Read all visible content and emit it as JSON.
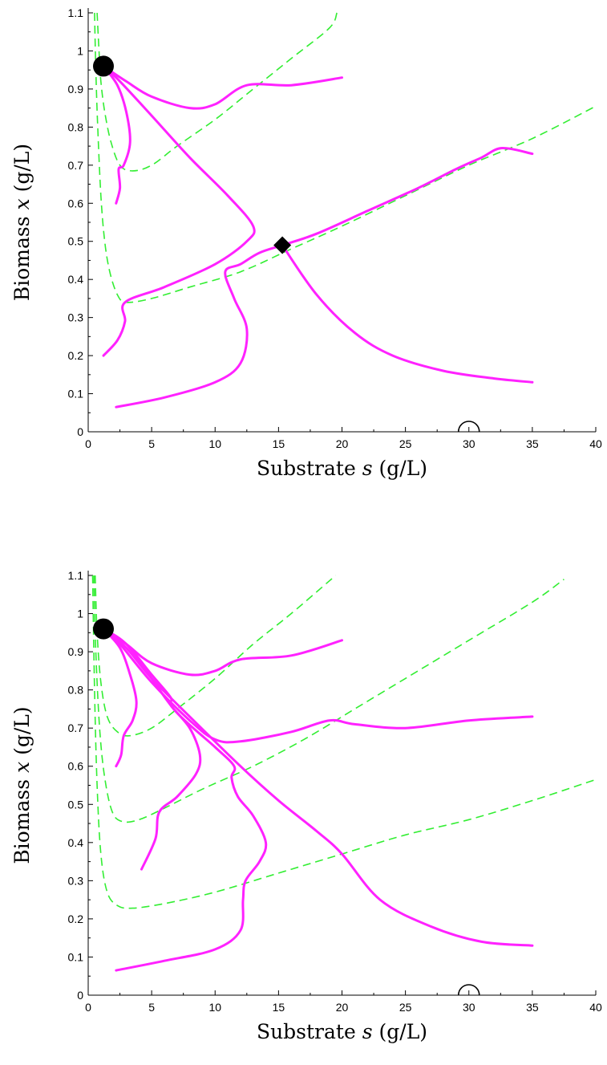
{
  "colors": {
    "trajectory": "#ff22ff",
    "nullcline": "#33ee33",
    "axis": "#000000",
    "marker": "#000000"
  },
  "chart_data": [
    {
      "type": "line",
      "xlabel": "Substrate",
      "xlabel_symbol": "s",
      "xlabel_unit": "(g/L)",
      "ylabel": "Biomass",
      "ylabel_symbol": "x",
      "ylabel_unit": "(g/L)",
      "xlim": [
        0,
        40
      ],
      "ylim": [
        0,
        1.1
      ],
      "xticks": [
        "0",
        "5",
        "10",
        "15",
        "20",
        "25",
        "30",
        "35",
        "40"
      ],
      "yticks": [
        "0",
        "0.1",
        "0.2",
        "0.3",
        "0.4",
        "0.5",
        "0.6",
        "0.7",
        "0.8",
        "0.9",
        "1",
        "1.1"
      ],
      "grid": false,
      "markers": [
        {
          "shape": "filled-circle",
          "x": 1.2,
          "y": 0.96
        },
        {
          "shape": "filled-diamond",
          "x": 15.3,
          "y": 0.49
        },
        {
          "shape": "open-half-circle",
          "x": 30,
          "y": 0
        }
      ],
      "series": [
        {
          "role": "nullcline",
          "points": [
            [
              0.5,
              1.1
            ],
            [
              0.6,
              0.95
            ],
            [
              0.75,
              0.8
            ],
            [
              1.0,
              0.62
            ],
            [
              1.3,
              0.5
            ],
            [
              1.7,
              0.42
            ],
            [
              2.3,
              0.36
            ],
            [
              3.0,
              0.34
            ],
            [
              5,
              0.35
            ],
            [
              8,
              0.38
            ],
            [
              12,
              0.42
            ],
            [
              16,
              0.48
            ],
            [
              20,
              0.54
            ],
            [
              25,
              0.62
            ],
            [
              30,
              0.7
            ],
            [
              35,
              0.77
            ],
            [
              40,
              0.855
            ]
          ]
        },
        {
          "role": "nullcline",
          "points": [
            [
              0.7,
              1.1
            ],
            [
              0.85,
              1.0
            ],
            [
              1.0,
              0.92
            ],
            [
              1.3,
              0.84
            ],
            [
              1.8,
              0.76
            ],
            [
              2.5,
              0.7
            ],
            [
              3.5,
              0.685
            ],
            [
              5,
              0.7
            ],
            [
              7,
              0.75
            ],
            [
              10,
              0.82
            ],
            [
              13,
              0.9
            ],
            [
              16,
              0.98
            ],
            [
              19,
              1.06
            ],
            [
              19.6,
              1.1
            ]
          ]
        },
        {
          "role": "trajectory",
          "points": [
            [
              20,
              0.93
            ],
            [
              16,
              0.91
            ],
            [
              12.5,
              0.91
            ],
            [
              10,
              0.86
            ],
            [
              8,
              0.85
            ],
            [
              5,
              0.88
            ],
            [
              3,
              0.92
            ],
            [
              1.2,
              0.96
            ]
          ]
        },
        {
          "role": "trajectory",
          "points": [
            [
              2.2,
              0.6
            ],
            [
              2.5,
              0.64
            ],
            [
              2.4,
              0.69
            ],
            [
              2.8,
              0.7
            ],
            [
              3.3,
              0.76
            ],
            [
              3.0,
              0.84
            ],
            [
              2.3,
              0.91
            ],
            [
              1.2,
              0.96
            ]
          ]
        },
        {
          "role": "trajectory",
          "points": [
            [
              1.2,
              0.2
            ],
            [
              2.3,
              0.24
            ],
            [
              2.9,
              0.29
            ],
            [
              2.9,
              0.34
            ],
            [
              6,
              0.38
            ],
            [
              10,
              0.44
            ],
            [
              12.5,
              0.5
            ],
            [
              13,
              0.54
            ],
            [
              11,
              0.62
            ],
            [
              8,
              0.72
            ],
            [
              5,
              0.83
            ],
            [
              2.5,
              0.92
            ],
            [
              1.2,
              0.96
            ]
          ]
        },
        {
          "role": "trajectory",
          "points": [
            [
              2.2,
              0.065
            ],
            [
              6,
              0.09
            ],
            [
              10,
              0.13
            ],
            [
              12,
              0.18
            ],
            [
              12.5,
              0.27
            ],
            [
              11.5,
              0.35
            ],
            [
              10.8,
              0.42
            ],
            [
              12,
              0.44
            ],
            [
              13.5,
              0.47
            ],
            [
              15.3,
              0.49
            ],
            [
              18,
              0.52
            ],
            [
              22,
              0.58
            ],
            [
              26,
              0.64
            ],
            [
              29,
              0.69
            ],
            [
              31,
              0.72
            ],
            [
              32.6,
              0.745
            ],
            [
              35,
              0.73
            ]
          ]
        },
        {
          "role": "trajectory",
          "points": [
            [
              35,
              0.13
            ],
            [
              32,
              0.14
            ],
            [
              28,
              0.16
            ],
            [
              24,
              0.2
            ],
            [
              21,
              0.26
            ],
            [
              18,
              0.36
            ],
            [
              15.3,
              0.49
            ]
          ]
        }
      ]
    },
    {
      "type": "line",
      "xlabel": "Substrate",
      "xlabel_symbol": "s",
      "xlabel_unit": "(g/L)",
      "ylabel": "Biomass",
      "ylabel_symbol": "x",
      "ylabel_unit": "(g/L)",
      "xlim": [
        0,
        40
      ],
      "ylim": [
        0,
        1.1
      ],
      "xticks": [
        "0",
        "5",
        "10",
        "15",
        "20",
        "25",
        "30",
        "35",
        "40"
      ],
      "yticks": [
        "0",
        "0.1",
        "0.2",
        "0.3",
        "0.4",
        "0.5",
        "0.6",
        "0.7",
        "0.8",
        "0.9",
        "1",
        "1.1"
      ],
      "grid": false,
      "markers": [
        {
          "shape": "filled-circle",
          "x": 1.2,
          "y": 0.96
        },
        {
          "shape": "open-half-circle",
          "x": 30,
          "y": 0
        }
      ],
      "series": [
        {
          "role": "nullcline",
          "points": [
            [
              0.35,
              1.1
            ],
            [
              0.5,
              0.8
            ],
            [
              0.7,
              0.55
            ],
            [
              1.0,
              0.37
            ],
            [
              1.5,
              0.27
            ],
            [
              2.3,
              0.235
            ],
            [
              3.5,
              0.228
            ],
            [
              6,
              0.24
            ],
            [
              10,
              0.27
            ],
            [
              15,
              0.32
            ],
            [
              20,
              0.37
            ],
            [
              25,
              0.42
            ],
            [
              30,
              0.46
            ],
            [
              35,
              0.51
            ],
            [
              40,
              0.565
            ]
          ]
        },
        {
          "role": "nullcline",
          "points": [
            [
              0.45,
              1.1
            ],
            [
              0.6,
              0.9
            ],
            [
              0.9,
              0.7
            ],
            [
              1.3,
              0.57
            ],
            [
              1.9,
              0.48
            ],
            [
              2.7,
              0.455
            ],
            [
              4,
              0.46
            ],
            [
              6,
              0.49
            ],
            [
              9,
              0.54
            ],
            [
              13,
              0.6
            ],
            [
              17,
              0.67
            ],
            [
              21,
              0.75
            ],
            [
              25,
              0.83
            ],
            [
              30,
              0.93
            ],
            [
              35,
              1.03
            ],
            [
              37.5,
              1.09
            ]
          ]
        },
        {
          "role": "nullcline",
          "points": [
            [
              0.55,
              1.1
            ],
            [
              0.7,
              0.95
            ],
            [
              1.0,
              0.82
            ],
            [
              1.5,
              0.73
            ],
            [
              2.3,
              0.69
            ],
            [
              3.3,
              0.68
            ],
            [
              5,
              0.7
            ],
            [
              7,
              0.75
            ],
            [
              10,
              0.83
            ],
            [
              13,
              0.92
            ],
            [
              16,
              1.0
            ],
            [
              19.5,
              1.1
            ]
          ]
        },
        {
          "role": "trajectory",
          "points": [
            [
              20,
              0.93
            ],
            [
              16,
              0.89
            ],
            [
              12,
              0.88
            ],
            [
              10,
              0.85
            ],
            [
              8,
              0.84
            ],
            [
              5,
              0.87
            ],
            [
              3,
              0.92
            ],
            [
              1.2,
              0.96
            ]
          ]
        },
        {
          "role": "trajectory",
          "points": [
            [
              2.2,
              0.6
            ],
            [
              2.6,
              0.63
            ],
            [
              2.8,
              0.68
            ],
            [
              3.5,
              0.72
            ],
            [
              3.8,
              0.77
            ],
            [
              3.3,
              0.84
            ],
            [
              2.5,
              0.91
            ],
            [
              1.2,
              0.96
            ]
          ]
        },
        {
          "role": "trajectory",
          "points": [
            [
              35,
              0.73
            ],
            [
              30,
              0.72
            ],
            [
              25,
              0.7
            ],
            [
              21,
              0.71
            ],
            [
              19,
              0.72
            ],
            [
              16,
              0.69
            ],
            [
              12,
              0.665
            ],
            [
              10,
              0.67
            ],
            [
              8,
              0.72
            ],
            [
              5,
              0.82
            ],
            [
              2.5,
              0.92
            ],
            [
              1.2,
              0.96
            ]
          ]
        },
        {
          "role": "trajectory",
          "points": [
            [
              4.2,
              0.33
            ],
            [
              5.3,
              0.41
            ],
            [
              5.6,
              0.48
            ],
            [
              7,
              0.52
            ],
            [
              8.5,
              0.58
            ],
            [
              8.8,
              0.63
            ],
            [
              8,
              0.7
            ],
            [
              6.5,
              0.76
            ],
            [
              6.5,
              0.78
            ],
            [
              5,
              0.84
            ],
            [
              3,
              0.92
            ],
            [
              1.2,
              0.96
            ]
          ]
        },
        {
          "role": "trajectory",
          "points": [
            [
              2.2,
              0.065
            ],
            [
              6,
              0.09
            ],
            [
              10,
              0.12
            ],
            [
              12,
              0.17
            ],
            [
              12.2,
              0.25
            ],
            [
              12.4,
              0.3
            ],
            [
              13.5,
              0.35
            ],
            [
              14,
              0.4
            ],
            [
              13,
              0.47
            ],
            [
              11.8,
              0.52
            ],
            [
              11.3,
              0.57
            ],
            [
              11.5,
              0.6
            ],
            [
              10,
              0.65
            ],
            [
              7,
              0.74
            ],
            [
              5,
              0.83
            ],
            [
              3,
              0.92
            ],
            [
              1.2,
              0.96
            ]
          ]
        },
        {
          "role": "trajectory",
          "points": [
            [
              35,
              0.13
            ],
            [
              31,
              0.14
            ],
            [
              27,
              0.18
            ],
            [
              23,
              0.25
            ],
            [
              20,
              0.37
            ],
            [
              18,
              0.43
            ],
            [
              15,
              0.51
            ],
            [
              12,
              0.6
            ],
            [
              8,
              0.73
            ],
            [
              5,
              0.83
            ],
            [
              3,
              0.91
            ],
            [
              1.2,
              0.96
            ]
          ]
        }
      ]
    }
  ]
}
